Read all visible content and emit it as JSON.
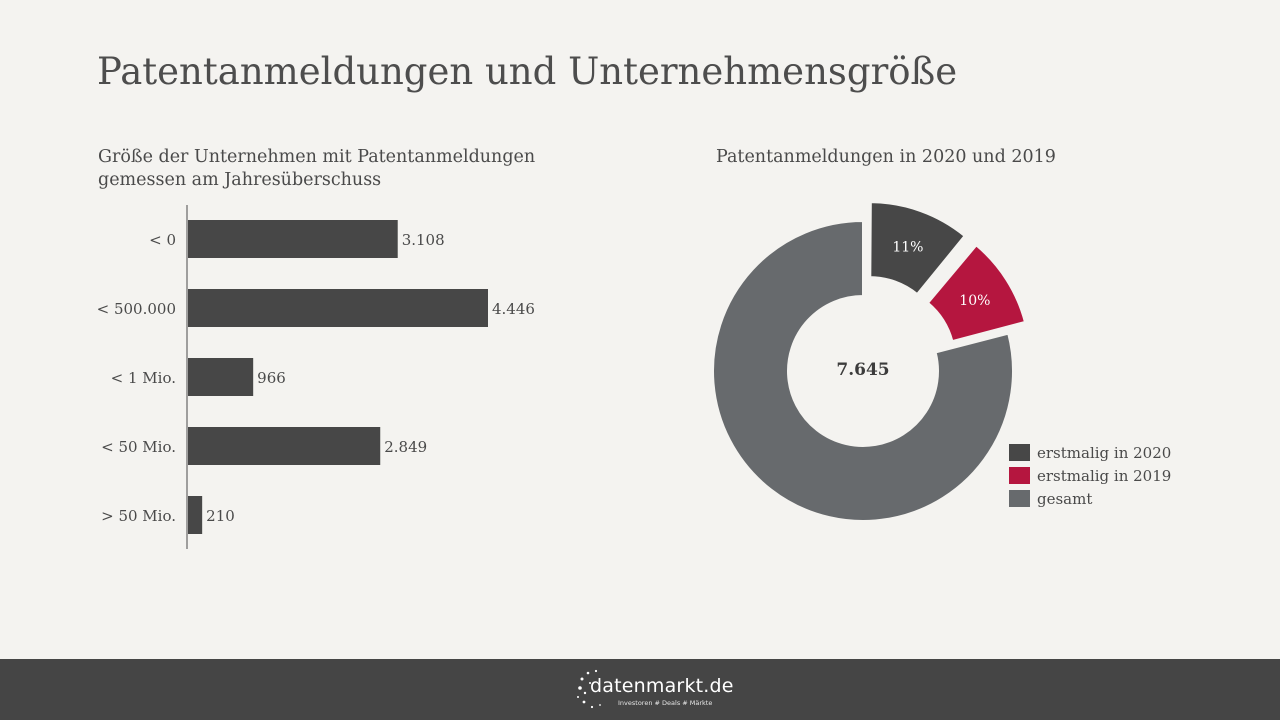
{
  "page": {
    "title": "Patentanmeldungen und Unternehmensgröße"
  },
  "bar_section": {
    "subtitle_line1": "Größe der Unternehmen mit Patentanmeldungen",
    "subtitle_line2": "gemessen am Jahresüberschuss"
  },
  "donut_section": {
    "subtitle": "Patentanmeldungen in 2020 und 2019",
    "center_label": "7.645"
  },
  "footer": {
    "logo_text": "datenmarkt.de",
    "logo_tagline": "Investoren # Deals # Märkte"
  },
  "colors": {
    "bar": "#474747",
    "first_2020": "#474747",
    "first_2019": "#b5163f",
    "total": "#676a6d",
    "background": "#f4f3f0",
    "footer": "#454545"
  },
  "chart_data": [
    {
      "type": "bar",
      "orientation": "horizontal",
      "title": "Größe der Unternehmen mit Patentanmeldungen gemessen am Jahresüberschuss",
      "categories": [
        "< 0",
        "< 500.000",
        "< 1 Mio.",
        "< 50 Mio.",
        "> 50 Mio."
      ],
      "values": [
        3108,
        4446,
        966,
        2849,
        210
      ],
      "value_labels": [
        "3.108",
        "4.446",
        "966",
        "2.849",
        "210"
      ],
      "xlim": [
        0,
        4446
      ],
      "grid": false
    },
    {
      "type": "pie",
      "variant": "donut",
      "title": "Patentanmeldungen in 2020 und 2019",
      "center_label": "7.645",
      "slices": [
        {
          "name": "erstmalig in 2020",
          "value": 11,
          "label": "11%",
          "exploded": true,
          "color": "#474747"
        },
        {
          "name": "erstmalig in 2019",
          "value": 10,
          "label": "10%",
          "exploded": true,
          "color": "#b5163f"
        },
        {
          "name": "gesamt",
          "value": 79,
          "label": "",
          "exploded": false,
          "color": "#676a6d"
        }
      ],
      "legend_position": "bottom-right"
    }
  ]
}
